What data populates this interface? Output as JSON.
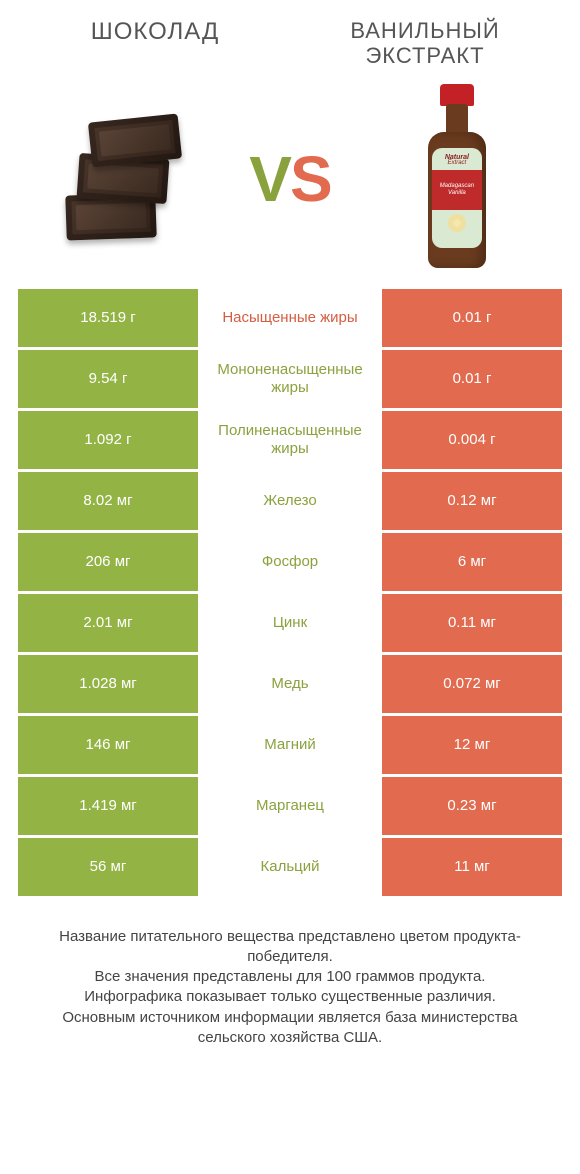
{
  "header": {
    "left_title": "Шоколад",
    "right_title": "Ванильный экстракт"
  },
  "vs": {
    "v": "V",
    "s": "S"
  },
  "colors": {
    "green": "#93b445",
    "orange": "#e16a4f",
    "mid_green": "#8aa23e",
    "mid_orange": "#d45d42",
    "background": "#ffffff"
  },
  "bottle_label": {
    "line1": "Natural",
    "line2": "Extract",
    "band1": "Madagascan",
    "band2": "Vanilla"
  },
  "rows": [
    {
      "left": "18.519 г",
      "mid": "Насыщенные жиры",
      "right": "0.01 г",
      "winner": "orange"
    },
    {
      "left": "9.54 г",
      "mid": "Мононенасыщенные жиры",
      "right": "0.01 г",
      "winner": "green"
    },
    {
      "left": "1.092 г",
      "mid": "Полиненасыщенные жиры",
      "right": "0.004 г",
      "winner": "green"
    },
    {
      "left": "8.02 мг",
      "mid": "Железо",
      "right": "0.12 мг",
      "winner": "green"
    },
    {
      "left": "206 мг",
      "mid": "Фосфор",
      "right": "6 мг",
      "winner": "green"
    },
    {
      "left": "2.01 мг",
      "mid": "Цинк",
      "right": "0.11 мг",
      "winner": "green"
    },
    {
      "left": "1.028 мг",
      "mid": "Медь",
      "right": "0.072 мг",
      "winner": "green"
    },
    {
      "left": "146 мг",
      "mid": "Магний",
      "right": "12 мг",
      "winner": "green"
    },
    {
      "left": "1.419 мг",
      "mid": "Марганец",
      "right": "0.23 мг",
      "winner": "green"
    },
    {
      "left": "56 мг",
      "mid": "Кальций",
      "right": "11 мг",
      "winner": "green"
    }
  ],
  "footnote": {
    "line1": "Название питательного вещества представлено цветом продукта-победителя.",
    "line2": "Все значения представлены для 100 граммов продукта.",
    "line3": "Инфографика показывает только существенные различия.",
    "line4": "Основным источником информации является база министерства сельского хозяйства США."
  }
}
